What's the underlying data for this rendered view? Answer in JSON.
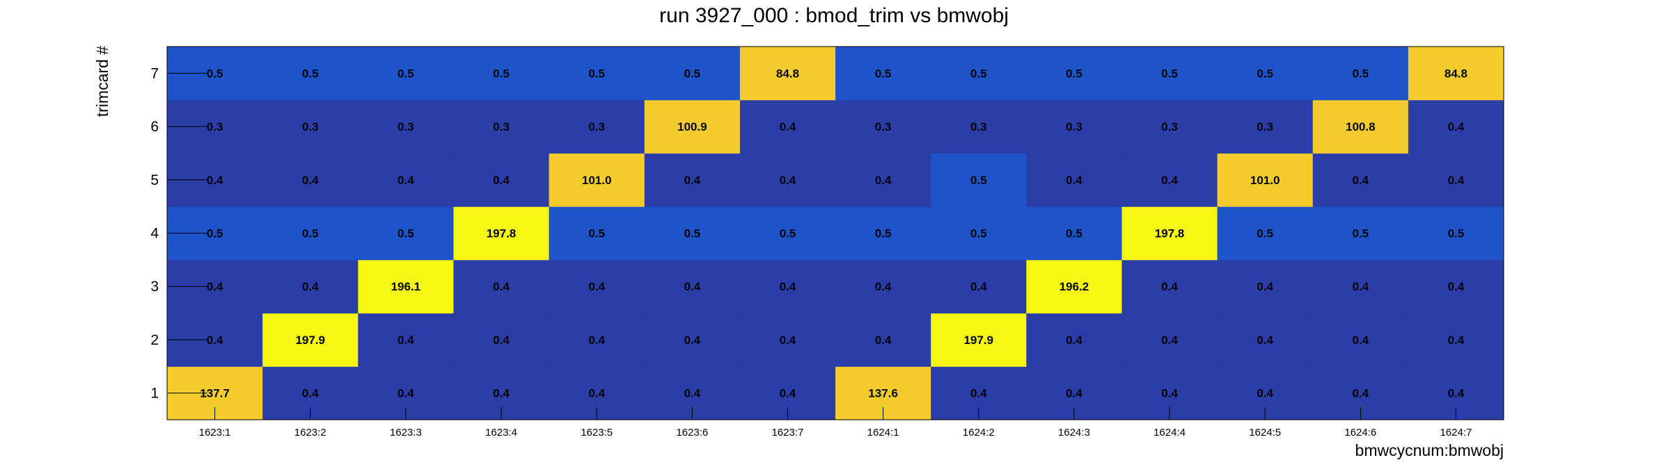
{
  "chart_data": {
    "type": "heatmap",
    "title": "run 3927_000 : bmod_trim vs bmwobj",
    "xlabel": "bmwcycnum:bmwobj",
    "ylabel": "trimcard #",
    "x_categories": [
      "1623:1",
      "1623:2",
      "1623:3",
      "1623:4",
      "1623:5",
      "1623:6",
      "1623:7",
      "1624:1",
      "1624:2",
      "1624:3",
      "1624:4",
      "1624:5",
      "1624:6",
      "1624:7"
    ],
    "y_categories": [
      "1",
      "2",
      "3",
      "4",
      "5",
      "6",
      "7"
    ],
    "values": [
      [
        137.7,
        0.4,
        0.4,
        0.4,
        0.4,
        0.4,
        0.4,
        137.6,
        0.4,
        0.4,
        0.4,
        0.4,
        0.4,
        0.4
      ],
      [
        0.4,
        197.9,
        0.4,
        0.4,
        0.4,
        0.4,
        0.4,
        0.4,
        197.9,
        0.4,
        0.4,
        0.4,
        0.4,
        0.4
      ],
      [
        0.4,
        0.4,
        196.1,
        0.4,
        0.4,
        0.4,
        0.4,
        0.4,
        0.4,
        196.2,
        0.4,
        0.4,
        0.4,
        0.4
      ],
      [
        0.5,
        0.5,
        0.5,
        197.8,
        0.5,
        0.5,
        0.5,
        0.5,
        0.5,
        0.5,
        197.8,
        0.5,
        0.5,
        0.5
      ],
      [
        0.4,
        0.4,
        0.4,
        0.4,
        101.0,
        0.4,
        0.4,
        0.4,
        0.5,
        0.4,
        0.4,
        101.0,
        0.4,
        0.4
      ],
      [
        0.3,
        0.3,
        0.3,
        0.3,
        0.3,
        100.9,
        0.4,
        0.3,
        0.3,
        0.3,
        0.3,
        0.3,
        100.8,
        0.4
      ],
      [
        0.5,
        0.5,
        0.5,
        0.5,
        0.5,
        0.5,
        84.8,
        0.5,
        0.5,
        0.5,
        0.5,
        0.5,
        0.5,
        84.8
      ]
    ],
    "colors": {
      "low_a": "#2b3da6",
      "low_b": "#1f54c8",
      "mid": "#f5cc2e",
      "high": "#f7f714",
      "axis": "#000000"
    }
  }
}
